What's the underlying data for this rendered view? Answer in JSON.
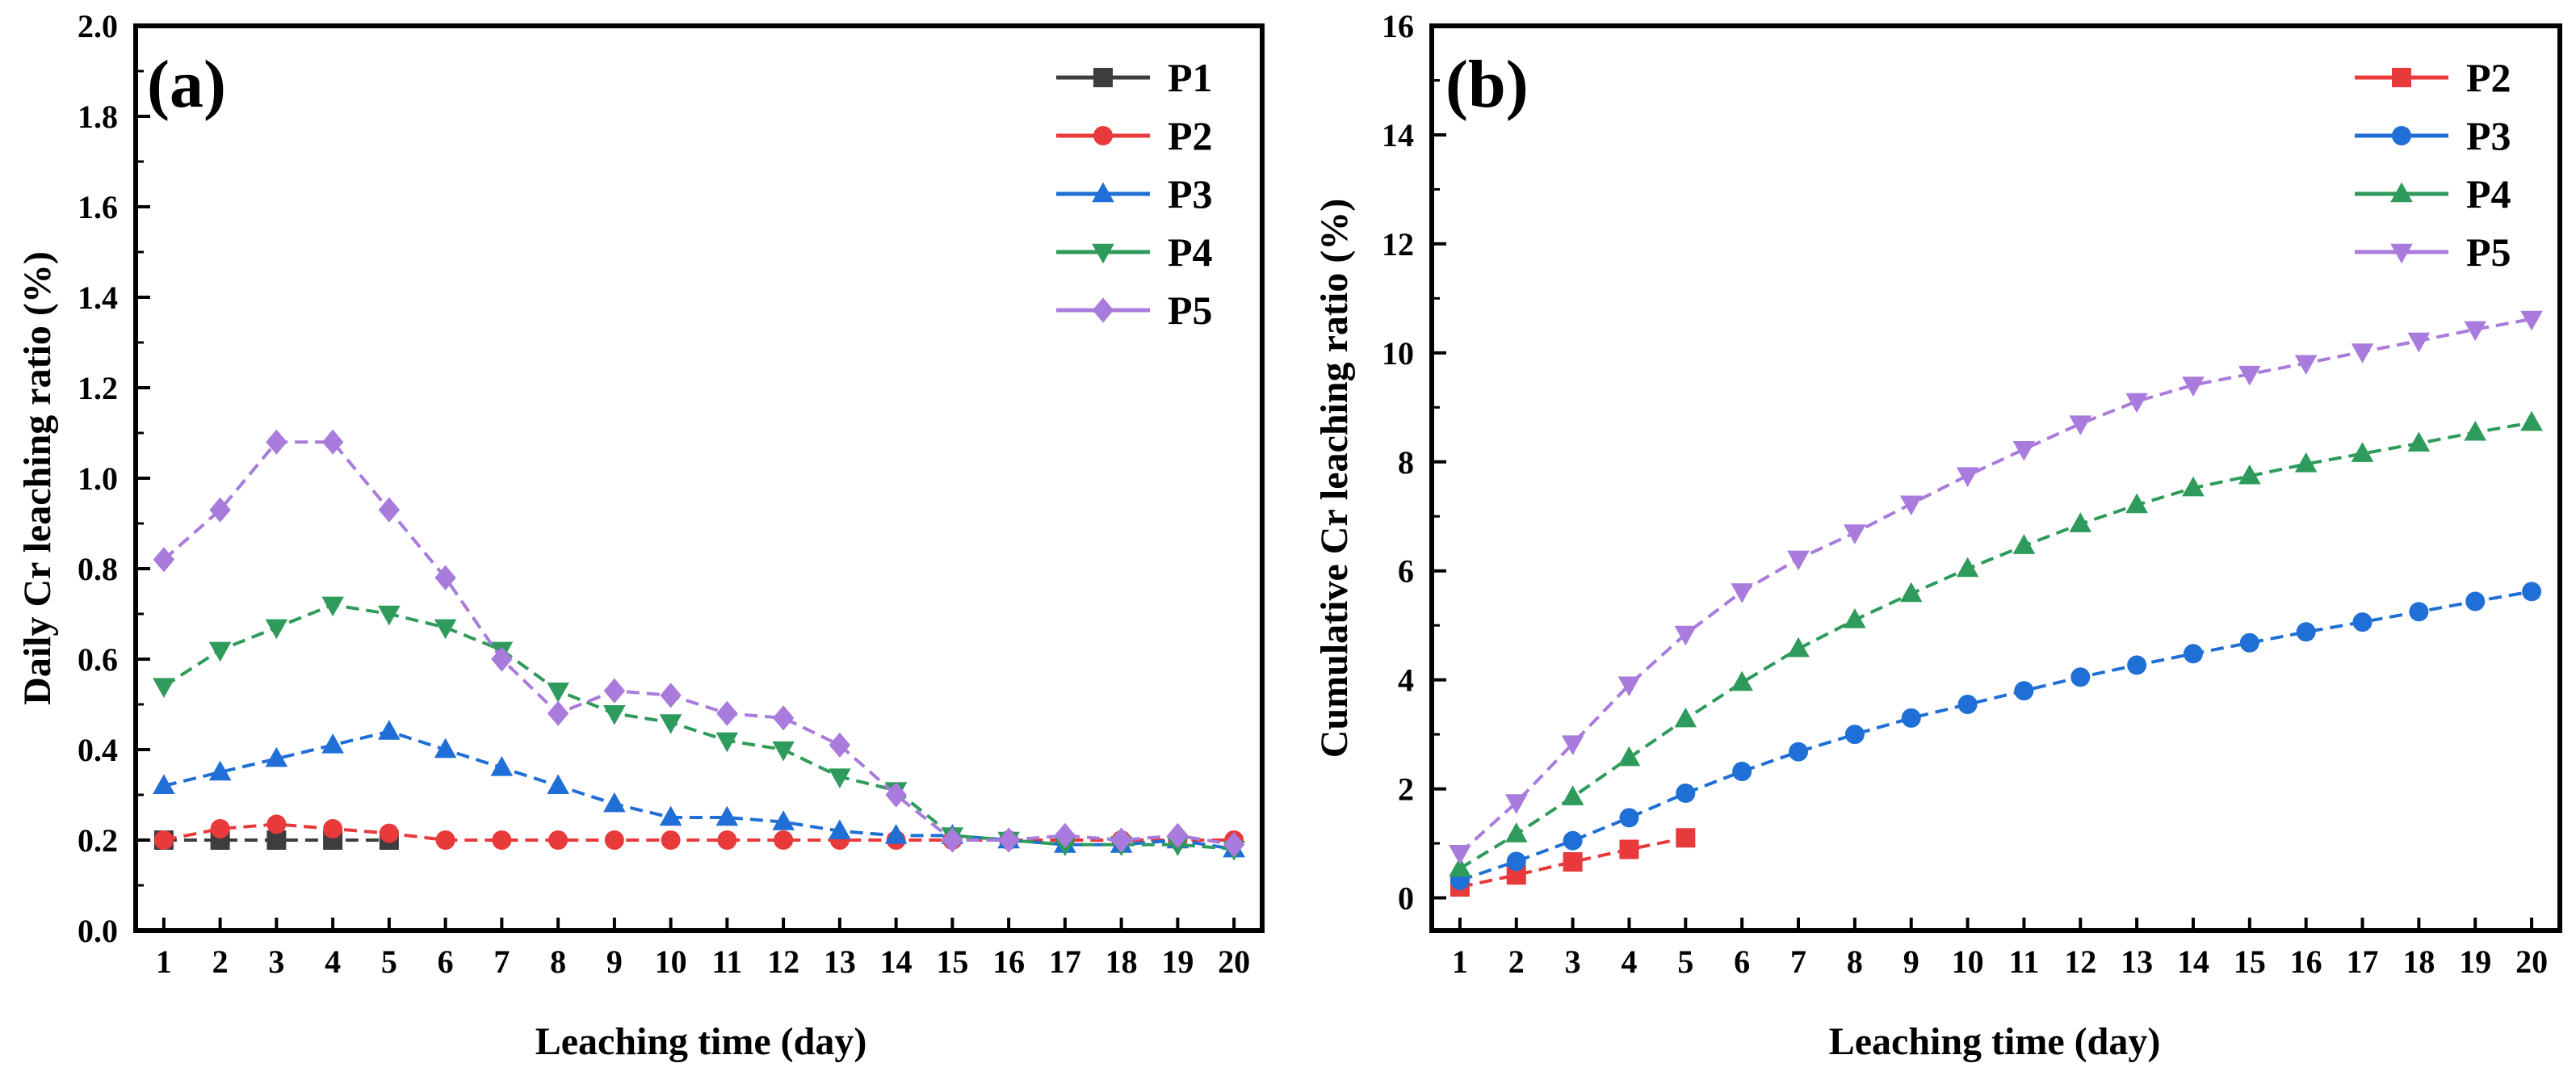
{
  "chart_data": [
    {
      "type": "line",
      "panel": "(a)",
      "xlabel": "Leaching time (day)",
      "ylabel": "Daily Cr leaching ratio (%)",
      "xlim": [
        0.5,
        20.5
      ],
      "ylim": [
        0,
        2.0
      ],
      "xticks": [
        1,
        2,
        3,
        4,
        5,
        6,
        7,
        8,
        9,
        10,
        11,
        12,
        13,
        14,
        15,
        16,
        17,
        18,
        19,
        20
      ],
      "xtick_labels": [
        "1",
        "2",
        "3",
        "4",
        "5",
        "6",
        "7",
        "8",
        "9",
        "10",
        "11",
        "12",
        "13",
        "14",
        "15",
        "16",
        "17",
        "18",
        "19",
        "20"
      ],
      "yticks": [
        0,
        0.2,
        0.4,
        0.6,
        0.8,
        1.0,
        1.2,
        1.4,
        1.6,
        1.8,
        2.0
      ],
      "ytick_labels": [
        "0.0",
        "0.2",
        "0.4",
        "0.6",
        "0.8",
        "1.0",
        "1.2",
        "1.4",
        "1.6",
        "1.8",
        "2.0"
      ],
      "legend_position": "top-right",
      "grid": false,
      "series": [
        {
          "name": "P1",
          "color": "#3d3d3d",
          "marker": "square",
          "x": [
            1,
            2,
            3,
            4,
            5
          ],
          "values": [
            0.2,
            0.2,
            0.2,
            0.2,
            0.2
          ]
        },
        {
          "name": "P2",
          "color": "#e8393b",
          "marker": "circle",
          "x": [
            1,
            2,
            3,
            4,
            5,
            6,
            7,
            8,
            9,
            10,
            11,
            12,
            13,
            14,
            15,
            16,
            17,
            18,
            19,
            20
          ],
          "values": [
            0.2,
            0.225,
            0.235,
            0.225,
            0.215,
            0.2,
            0.2,
            0.2,
            0.2,
            0.2,
            0.2,
            0.2,
            0.2,
            0.2,
            0.2,
            0.2,
            0.2,
            0.2,
            0.2,
            0.2
          ]
        },
        {
          "name": "P3",
          "color": "#1f6fd6",
          "marker": "triangle-up",
          "x": [
            1,
            2,
            3,
            4,
            5,
            6,
            7,
            8,
            9,
            10,
            11,
            12,
            13,
            14,
            15,
            16,
            17,
            18,
            19,
            20
          ],
          "values": [
            0.32,
            0.35,
            0.38,
            0.41,
            0.44,
            0.4,
            0.36,
            0.32,
            0.28,
            0.25,
            0.25,
            0.24,
            0.22,
            0.21,
            0.21,
            0.2,
            0.19,
            0.19,
            0.2,
            0.18
          ]
        },
        {
          "name": "P4",
          "color": "#2e9b5c",
          "marker": "triangle-down",
          "x": [
            1,
            2,
            3,
            4,
            5,
            6,
            7,
            8,
            9,
            10,
            11,
            12,
            13,
            14,
            15,
            16,
            17,
            18,
            19,
            20
          ],
          "values": [
            0.54,
            0.62,
            0.67,
            0.72,
            0.7,
            0.67,
            0.62,
            0.53,
            0.48,
            0.46,
            0.42,
            0.4,
            0.34,
            0.31,
            0.21,
            0.2,
            0.19,
            0.19,
            0.19,
            0.18
          ]
        },
        {
          "name": "P5",
          "color": "#a97bdc",
          "marker": "diamond",
          "x": [
            1,
            2,
            3,
            4,
            5,
            6,
            7,
            8,
            9,
            10,
            11,
            12,
            13,
            14,
            15,
            16,
            17,
            18,
            19,
            20
          ],
          "values": [
            0.82,
            0.93,
            1.08,
            1.08,
            0.93,
            0.78,
            0.6,
            0.48,
            0.53,
            0.52,
            0.48,
            0.47,
            0.41,
            0.3,
            0.2,
            0.2,
            0.21,
            0.2,
            0.21,
            0.19
          ]
        }
      ]
    },
    {
      "type": "line",
      "panel": "(b)",
      "xlabel": "Leaching time (day)",
      "ylabel": "Cumulative Cr leaching ratio (%)",
      "xlim": [
        0.5,
        20.5
      ],
      "ylim": [
        -0.6,
        16
      ],
      "xticks": [
        1,
        2,
        3,
        4,
        5,
        6,
        7,
        8,
        9,
        10,
        11,
        12,
        13,
        14,
        15,
        16,
        17,
        18,
        19,
        20
      ],
      "xtick_labels": [
        "1",
        "2",
        "3",
        "4",
        "5",
        "6",
        "7",
        "8",
        "9",
        "10",
        "11",
        "12",
        "13",
        "14",
        "15",
        "16",
        "17",
        "18",
        "19",
        "20"
      ],
      "yticks": [
        0,
        2,
        4,
        6,
        8,
        10,
        12,
        14,
        16
      ],
      "ytick_labels": [
        "0",
        "2",
        "4",
        "6",
        "8",
        "10",
        "12",
        "14",
        "16"
      ],
      "legend_position": "top-right",
      "grid": false,
      "series": [
        {
          "name": "P2",
          "color": "#e8393b",
          "marker": "square",
          "x": [
            1,
            2,
            3,
            4,
            5
          ],
          "values": [
            0.2,
            0.42,
            0.66,
            0.89,
            1.1
          ]
        },
        {
          "name": "P3",
          "color": "#1f6fd6",
          "marker": "circle",
          "x": [
            1,
            2,
            3,
            4,
            5,
            6,
            7,
            8,
            9,
            10,
            11,
            12,
            13,
            14,
            15,
            16,
            17,
            18,
            19,
            20
          ],
          "values": [
            0.32,
            0.67,
            1.05,
            1.47,
            1.92,
            2.32,
            2.68,
            3.0,
            3.3,
            3.55,
            3.8,
            4.05,
            4.27,
            4.48,
            4.68,
            4.88,
            5.06,
            5.25,
            5.44,
            5.62
          ]
        },
        {
          "name": "P4",
          "color": "#2e9b5c",
          "marker": "triangle-up",
          "x": [
            1,
            2,
            3,
            4,
            5,
            6,
            7,
            8,
            9,
            10,
            11,
            12,
            13,
            14,
            15,
            16,
            17,
            18,
            19,
            20
          ],
          "values": [
            0.54,
            1.17,
            1.85,
            2.57,
            3.28,
            3.95,
            4.57,
            5.1,
            5.58,
            6.04,
            6.46,
            6.86,
            7.21,
            7.52,
            7.74,
            7.96,
            8.15,
            8.34,
            8.54,
            8.72
          ]
        },
        {
          "name": "P5",
          "color": "#a97bdc",
          "marker": "triangle-down",
          "x": [
            1,
            2,
            3,
            4,
            5,
            6,
            7,
            8,
            9,
            10,
            11,
            12,
            13,
            14,
            15,
            16,
            17,
            18,
            19,
            20
          ],
          "values": [
            0.82,
            1.75,
            2.83,
            3.91,
            4.84,
            5.62,
            6.22,
            6.7,
            7.23,
            7.75,
            8.23,
            8.7,
            9.11,
            9.41,
            9.61,
            9.81,
            10.02,
            10.22,
            10.43,
            10.62
          ]
        }
      ]
    }
  ]
}
